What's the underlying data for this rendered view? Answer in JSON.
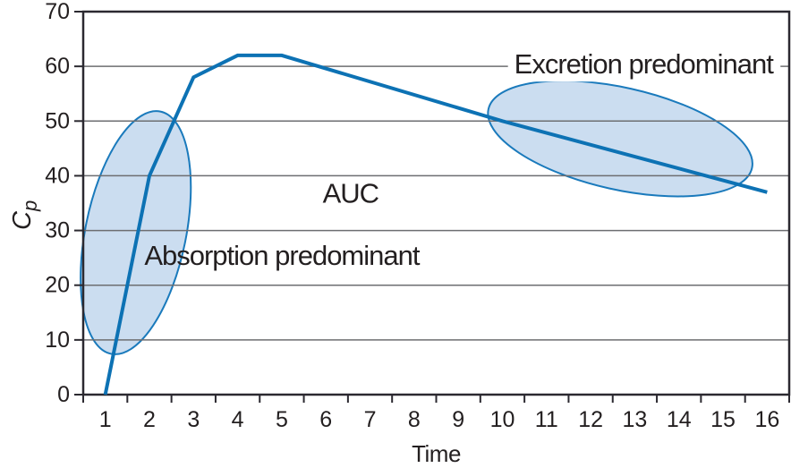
{
  "figure": {
    "description": "Plasma drug concentration versus time curve with absorption and excretion phases highlighted"
  },
  "chart_data": {
    "type": "line",
    "title": "",
    "xlabel": "Time",
    "ylabel_main": "C",
    "ylabel_sub": "p",
    "xlim": [
      0.5,
      16.5
    ],
    "ylim": [
      0,
      70
    ],
    "x_tick_labels": [
      "1",
      "2",
      "3",
      "4",
      "5",
      "6",
      "7",
      "8",
      "9",
      "10",
      "11",
      "12",
      "13",
      "14",
      "15",
      "16"
    ],
    "x_tick_label_positions": [
      1,
      2,
      3,
      4,
      5,
      6,
      7,
      8,
      9,
      10,
      11,
      12,
      13,
      14,
      15,
      16
    ],
    "x_tick_mark_positions": [
      0.5,
      1.5,
      2.5,
      3.5,
      4.5,
      5.5,
      6.5,
      7.5,
      8.5,
      9.5,
      10.5,
      11.5,
      12.5,
      13.5,
      14.5,
      15.5,
      16.5
    ],
    "y_tick_labels": [
      "0",
      "10",
      "20",
      "30",
      "40",
      "50",
      "60",
      "70"
    ],
    "y_tick_values": [
      0,
      10,
      20,
      30,
      40,
      50,
      60,
      70
    ],
    "grid_values": [
      10,
      20,
      30,
      40,
      50,
      60
    ],
    "grid_on": true,
    "legend": "none",
    "series": [
      {
        "name": "plasma-concentration-curve",
        "color": "#0d72b4",
        "stroke_width": 4,
        "points": [
          [
            1,
            0
          ],
          [
            2,
            40
          ],
          [
            3,
            58
          ],
          [
            4,
            62
          ],
          [
            5,
            62
          ],
          [
            10,
            50
          ],
          [
            16,
            37
          ]
        ]
      }
    ],
    "regions": [
      {
        "id": "absorption",
        "cx": 1.69,
        "cy": 29.6,
        "rx_units": 1.14,
        "ry_units": 22.6,
        "rotation_deg": 11.5,
        "fill": "#cbddf0",
        "stroke": "#1a7abc",
        "stroke_width": 2
      },
      {
        "id": "excretion",
        "cx": 12.67,
        "cy": 46.8,
        "rx_units": 3.06,
        "ry_units": 9.32,
        "rotation_deg": 12.6,
        "fill": "#cbddf0",
        "stroke": "#1a7abc",
        "stroke_width": 2
      }
    ],
    "annotations": [
      {
        "id": "absorption-predominant",
        "text": "Absorption predominant",
        "x": 5.0,
        "y": 25.4,
        "white_bg": false
      },
      {
        "id": "excretion-predominant",
        "text": "Excretion predominant",
        "x": 13.2,
        "y": 60.4,
        "white_bg": true
      },
      {
        "id": "auc",
        "text": "AUC",
        "x": 6.56,
        "y": 36.8,
        "white_bg": false
      }
    ],
    "colors": {
      "curve": "#0d72b4",
      "region_fill": "#cbddf0",
      "region_stroke": "#1a7abc",
      "gridline": "#6d6e71",
      "frame": "#2b2930",
      "text": "#231f20",
      "background": "#ffffff"
    }
  }
}
